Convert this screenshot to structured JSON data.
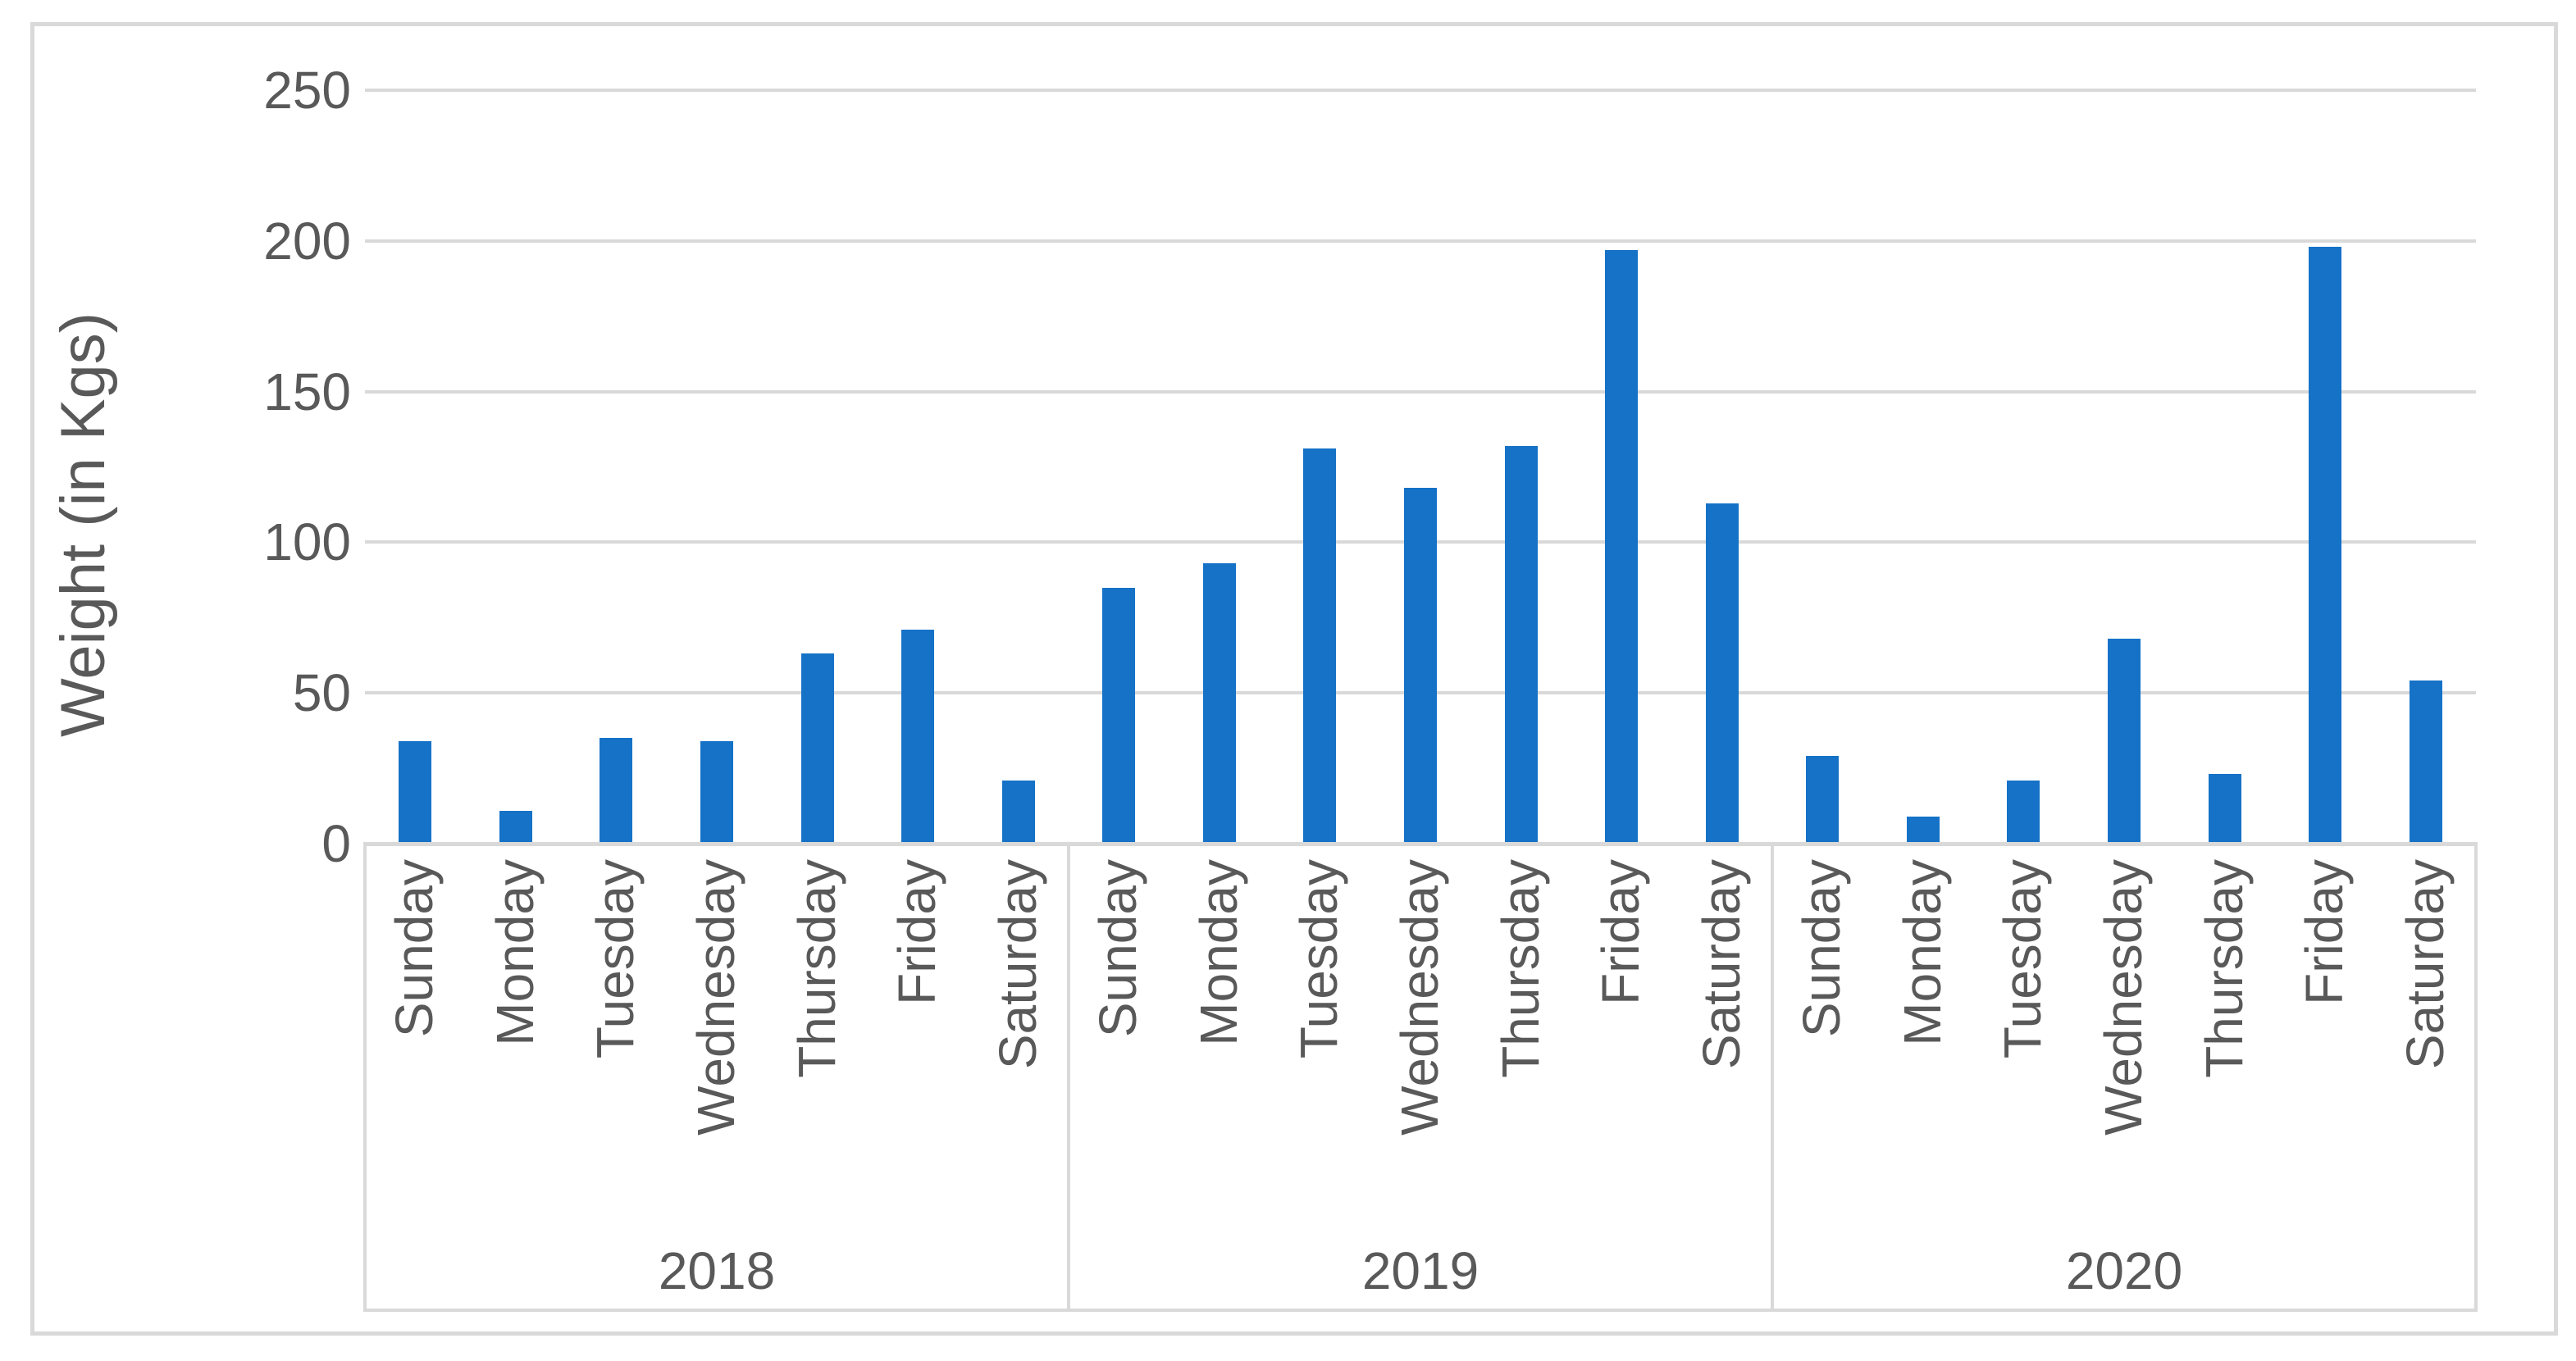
{
  "chart_data": {
    "type": "bar",
    "title": "",
    "xlabel": "",
    "ylabel": "Weight (in Kgs)",
    "ylim": [
      0,
      250
    ],
    "yticks": [
      0,
      50,
      100,
      150,
      200,
      250
    ],
    "grid": true,
    "legend_position": "none",
    "categories": [
      "Sunday",
      "Monday",
      "Tuesday",
      "Wednesday",
      "Thursday",
      "Friday",
      "Saturday"
    ],
    "group_labels": [
      "2018",
      "2019",
      "2020"
    ],
    "series": [
      {
        "name": "2018",
        "values": [
          34,
          11,
          35,
          34,
          63,
          71,
          21
        ]
      },
      {
        "name": "2019",
        "values": [
          85,
          93,
          131,
          118,
          132,
          197,
          113
        ]
      },
      {
        "name": "2020",
        "values": [
          29,
          9,
          21,
          68,
          23,
          198,
          54
        ]
      }
    ]
  },
  "colors": {
    "bar": "#1572C7",
    "gridline": "#d9d9d9",
    "axis_line": "#d9d9d9",
    "text": "#595959",
    "frame_border": "#d9d9d9",
    "background": "#ffffff"
  }
}
